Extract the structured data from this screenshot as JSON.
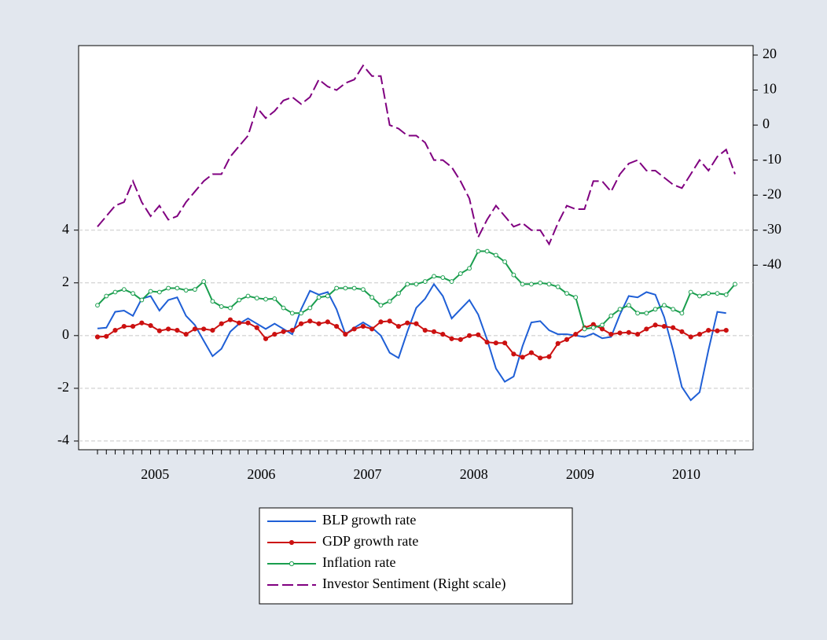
{
  "chart_data": {
    "type": "line",
    "categories": [
      null,
      null,
      null,
      null,
      null,
      null,
      null,
      null,
      null,
      null,
      null,
      null,
      null,
      null,
      null,
      null,
      null,
      null,
      null,
      null,
      null,
      null,
      null,
      null,
      null,
      null,
      null,
      null,
      null,
      null,
      null,
      null,
      null,
      null,
      null,
      null,
      null,
      null,
      null,
      null,
      null,
      null,
      null,
      null,
      null,
      null,
      null,
      null,
      null,
      null,
      null,
      null,
      null,
      null,
      null,
      null,
      null,
      null,
      null,
      null,
      null,
      null,
      null,
      null,
      null,
      null,
      null,
      null,
      null,
      null,
      null,
      null,
      null
    ],
    "year_labels": [
      "2005",
      "2006",
      "2007",
      "2008",
      "2009",
      "2010"
    ],
    "ylim": [
      -4.33,
      11.0
    ],
    "yticks": [
      -4,
      -2,
      0,
      2,
      4
    ],
    "y2lim": [
      -92.7,
      22.7
    ],
    "y2ticks": [
      -40,
      -30,
      -20,
      -10,
      0,
      10,
      20
    ],
    "grid": true,
    "legend": "bottom",
    "series": [
      {
        "name": "BLP growth rate",
        "color": "#1f5fd6",
        "marker": "none",
        "values": [
          0.27,
          0.3,
          0.9,
          0.95,
          0.75,
          1.4,
          1.5,
          0.95,
          1.35,
          1.45,
          0.75,
          0.4,
          -0.2,
          -0.78,
          -0.5,
          0.15,
          0.45,
          0.65,
          0.45,
          0.25,
          0.45,
          0.25,
          0.05,
          1.0,
          1.7,
          1.55,
          1.65,
          1.0,
          0.05,
          0.3,
          0.5,
          0.3,
          0.0,
          -0.65,
          -0.85,
          0.15,
          1.05,
          1.4,
          1.95,
          1.5,
          0.65,
          1.0,
          1.35,
          0.8,
          -0.15,
          -1.25,
          -1.75,
          -1.55,
          -0.4,
          0.5,
          0.55,
          0.2,
          0.05,
          0.05,
          0.0,
          -0.05,
          0.08,
          -0.1,
          -0.05,
          0.8,
          1.5,
          1.45,
          1.65,
          1.55,
          0.7,
          -0.55,
          -1.95,
          -2.45,
          -2.15,
          -0.55,
          0.9,
          0.85,
          null
        ]
      },
      {
        "name": "GDP growth rate",
        "color": "#cc1111",
        "marker": "filled",
        "values": [
          -0.05,
          -0.03,
          0.2,
          0.35,
          0.35,
          0.48,
          0.38,
          0.18,
          0.25,
          0.2,
          0.05,
          0.25,
          0.25,
          0.2,
          0.45,
          0.6,
          0.48,
          0.48,
          0.3,
          -0.12,
          0.05,
          0.15,
          0.2,
          0.45,
          0.55,
          0.45,
          0.52,
          0.35,
          0.05,
          0.25,
          0.35,
          0.25,
          0.52,
          0.55,
          0.35,
          0.48,
          0.45,
          0.2,
          0.15,
          0.05,
          -0.12,
          -0.15,
          0.0,
          0.03,
          -0.25,
          -0.28,
          -0.28,
          -0.7,
          -0.82,
          -0.65,
          -0.85,
          -0.8,
          -0.3,
          -0.15,
          0.05,
          0.3,
          0.42,
          0.25,
          0.05,
          0.1,
          0.12,
          0.05,
          0.25,
          0.4,
          0.35,
          0.3,
          0.15,
          -0.05,
          0.05,
          0.2,
          0.18,
          0.2,
          null
        ]
      },
      {
        "name": "Inflation rate",
        "color": "#1a9e4e",
        "marker": "hollow",
        "values": [
          1.15,
          1.5,
          1.65,
          1.75,
          1.6,
          1.35,
          1.68,
          1.65,
          1.8,
          1.8,
          1.72,
          1.75,
          2.05,
          1.3,
          1.1,
          1.05,
          1.35,
          1.5,
          1.42,
          1.38,
          1.4,
          1.05,
          0.85,
          0.85,
          1.05,
          1.45,
          1.5,
          1.8,
          1.8,
          1.8,
          1.75,
          1.45,
          1.15,
          1.3,
          1.6,
          1.95,
          1.95,
          2.05,
          2.25,
          2.2,
          2.05,
          2.35,
          2.55,
          3.2,
          3.2,
          3.05,
          2.8,
          2.3,
          1.95,
          1.95,
          2.0,
          1.95,
          1.85,
          1.6,
          1.45,
          0.25,
          0.3,
          0.4,
          0.75,
          1.0,
          1.15,
          0.85,
          0.85,
          1.0,
          1.15,
          1.0,
          0.85,
          1.65,
          1.5,
          1.6,
          1.6,
          1.55,
          1.95
        ]
      },
      {
        "name": "Investor Sentiment (Right scale)",
        "color": "#800080",
        "marker": "none",
        "dash": true,
        "axis": "y2",
        "values": [
          -29,
          -26,
          -23,
          -22,
          -16,
          -22,
          -26,
          -23,
          -27,
          -26,
          -22,
          -19,
          -16,
          -14,
          -14,
          -9,
          -6,
          -3,
          5,
          2,
          4,
          7,
          8,
          6,
          8,
          13,
          11,
          10,
          12,
          13,
          17,
          14,
          14,
          0,
          -1,
          -3,
          -3,
          -5,
          -10,
          -10,
          -12,
          -16,
          -21,
          -32,
          -27,
          -23,
          -26,
          -29,
          -28,
          -30,
          -30,
          -34,
          -28,
          -23,
          -24,
          -24,
          -16,
          -16,
          -19,
          -14,
          -11,
          -10,
          -13,
          -13,
          -15,
          -17,
          -18,
          -14,
          -10,
          -13,
          -9,
          -7,
          -14
        ]
      }
    ]
  }
}
